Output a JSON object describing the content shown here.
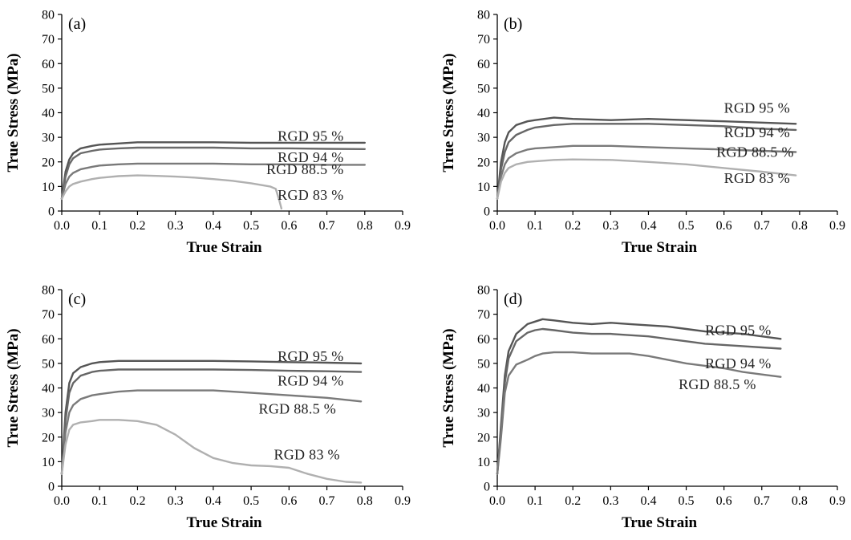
{
  "chart_data": [
    {
      "type": "line",
      "panel_label": "(a)",
      "xlabel": "True Strain",
      "ylabel": "True Stress (MPa)",
      "xlim": [
        0,
        0.9
      ],
      "ylim": [
        0,
        80
      ],
      "xticks": [
        "0.0",
        "0.1",
        "0.2",
        "0.3",
        "0.4",
        "0.5",
        "0.6",
        "0.7",
        "0.8",
        "0.9"
      ],
      "yticks": [
        "0",
        "10",
        "20",
        "30",
        "40",
        "50",
        "60",
        "70",
        "80"
      ],
      "grid": false,
      "series": [
        {
          "name": "RGD 95 %",
          "color": "#555555",
          "label_pos": [
            0.57,
            28.5
          ],
          "x": [
            0,
            0.01,
            0.02,
            0.03,
            0.05,
            0.08,
            0.1,
            0.15,
            0.2,
            0.3,
            0.4,
            0.5,
            0.6,
            0.7,
            0.8
          ],
          "y": [
            5,
            16,
            21,
            23.5,
            25.5,
            26.5,
            27,
            27.5,
            28,
            28,
            28,
            27.8,
            27.8,
            27.8,
            27.8
          ]
        },
        {
          "name": "RGD 94 %",
          "color": "#6a6a6a",
          "label_pos": [
            0.57,
            20
          ],
          "x": [
            0,
            0.01,
            0.02,
            0.03,
            0.05,
            0.08,
            0.1,
            0.15,
            0.2,
            0.3,
            0.4,
            0.5,
            0.6,
            0.7,
            0.8
          ],
          "y": [
            5,
            14,
            19,
            21.5,
            23.5,
            24.5,
            25,
            25.5,
            25.8,
            25.8,
            25.8,
            25.5,
            25.5,
            25.3,
            25.2
          ]
        },
        {
          "name": "RGD 88.5 %",
          "color": "#7a7a7a",
          "label_pos": [
            0.54,
            15
          ],
          "x": [
            0,
            0.01,
            0.02,
            0.03,
            0.05,
            0.08,
            0.1,
            0.15,
            0.2,
            0.3,
            0.4,
            0.5,
            0.6,
            0.7,
            0.8
          ],
          "y": [
            5,
            11,
            14,
            15.5,
            17,
            18,
            18.5,
            19,
            19.3,
            19.3,
            19.3,
            19,
            19,
            18.8,
            18.8
          ]
        },
        {
          "name": "RGD 83 %",
          "color": "#b0b0b0",
          "label_pos": [
            0.57,
            4.5
          ],
          "x": [
            0,
            0.01,
            0.02,
            0.03,
            0.05,
            0.08,
            0.1,
            0.15,
            0.2,
            0.25,
            0.3,
            0.35,
            0.4,
            0.45,
            0.5,
            0.55,
            0.565,
            0.575,
            0.58
          ],
          "y": [
            5,
            8,
            10,
            11,
            12,
            13,
            13.5,
            14.2,
            14.5,
            14.3,
            14,
            13.6,
            13,
            12.3,
            11.3,
            10,
            9,
            4,
            1
          ]
        }
      ]
    },
    {
      "type": "line",
      "panel_label": "(b)",
      "xlabel": "True Strain",
      "ylabel": "True Stress (MPa)",
      "xlim": [
        0,
        0.9
      ],
      "ylim": [
        0,
        80
      ],
      "xticks": [
        "0.0",
        "0.1",
        "0.2",
        "0.3",
        "0.4",
        "0.5",
        "0.6",
        "0.7",
        "0.8",
        "0.9"
      ],
      "yticks": [
        "0",
        "10",
        "20",
        "30",
        "40",
        "50",
        "60",
        "70",
        "80"
      ],
      "grid": false,
      "series": [
        {
          "name": "RGD 95 %",
          "color": "#555555",
          "label_pos": [
            0.6,
            40
          ],
          "x": [
            0,
            0.01,
            0.02,
            0.03,
            0.05,
            0.08,
            0.1,
            0.15,
            0.2,
            0.3,
            0.4,
            0.5,
            0.6,
            0.7,
            0.79
          ],
          "y": [
            5,
            20,
            28,
            32,
            35,
            36.5,
            37,
            38,
            37.5,
            37,
            37.5,
            37,
            36.5,
            36,
            35.5
          ]
        },
        {
          "name": "RGD 94 %",
          "color": "#666666",
          "label_pos": [
            0.6,
            30
          ],
          "x": [
            0,
            0.01,
            0.02,
            0.03,
            0.05,
            0.08,
            0.1,
            0.15,
            0.2,
            0.3,
            0.4,
            0.5,
            0.6,
            0.7,
            0.79
          ],
          "y": [
            5,
            17,
            24,
            28,
            31,
            33,
            34,
            35,
            35.5,
            35.5,
            35.5,
            35,
            34.5,
            33.5,
            33
          ]
        },
        {
          "name": "RGD 88.5 %",
          "color": "#7a7a7a",
          "label_pos": [
            0.58,
            22
          ],
          "x": [
            0,
            0.01,
            0.02,
            0.03,
            0.05,
            0.08,
            0.1,
            0.15,
            0.2,
            0.3,
            0.4,
            0.5,
            0.6,
            0.7,
            0.79
          ],
          "y": [
            5,
            14,
            19,
            21.5,
            23.5,
            25,
            25.5,
            26,
            26.5,
            26.5,
            26,
            25.5,
            25,
            24.5,
            24
          ]
        },
        {
          "name": "RGD 83 %",
          "color": "#b0b0b0",
          "label_pos": [
            0.6,
            11.5
          ],
          "x": [
            0,
            0.01,
            0.02,
            0.03,
            0.05,
            0.08,
            0.1,
            0.15,
            0.2,
            0.3,
            0.4,
            0.5,
            0.6,
            0.7,
            0.79
          ],
          "y": [
            5,
            12,
            15.5,
            17.5,
            19,
            20,
            20.2,
            20.8,
            21,
            20.8,
            20,
            19,
            17.5,
            16,
            14.5
          ]
        }
      ]
    },
    {
      "type": "line",
      "panel_label": "(c)",
      "xlabel": "True Strain",
      "ylabel": "True Stress (MPa)",
      "xlim": [
        0,
        0.9
      ],
      "ylim": [
        0,
        80
      ],
      "xticks": [
        "0.0",
        "0.1",
        "0.2",
        "0.3",
        "0.4",
        "0.5",
        "0.6",
        "0.7",
        "0.8",
        "0.9"
      ],
      "yticks": [
        "0",
        "10",
        "20",
        "30",
        "40",
        "50",
        "60",
        "70",
        "80"
      ],
      "grid": false,
      "series": [
        {
          "name": "RGD 95 %",
          "color": "#555555",
          "label_pos": [
            0.57,
            51
          ],
          "x": [
            0,
            0.01,
            0.02,
            0.03,
            0.05,
            0.08,
            0.1,
            0.15,
            0.2,
            0.3,
            0.4,
            0.5,
            0.6,
            0.7,
            0.79
          ],
          "y": [
            5,
            30,
            42,
            46,
            48.5,
            50,
            50.5,
            51,
            51,
            51,
            51,
            50.8,
            50.5,
            50.3,
            50
          ]
        },
        {
          "name": "RGD 94 %",
          "color": "#666666",
          "label_pos": [
            0.57,
            41
          ],
          "x": [
            0,
            0.01,
            0.02,
            0.03,
            0.05,
            0.08,
            0.1,
            0.15,
            0.2,
            0.3,
            0.4,
            0.5,
            0.6,
            0.7,
            0.79
          ],
          "y": [
            5,
            27,
            38,
            42,
            45,
            46.5,
            47,
            47.5,
            47.5,
            47.5,
            47.5,
            47.3,
            47,
            46.8,
            46.5
          ]
        },
        {
          "name": "RGD 88.5 %",
          "color": "#7a7a7a",
          "label_pos": [
            0.52,
            29.5
          ],
          "x": [
            0,
            0.01,
            0.02,
            0.03,
            0.05,
            0.08,
            0.1,
            0.15,
            0.2,
            0.3,
            0.4,
            0.5,
            0.6,
            0.7,
            0.79
          ],
          "y": [
            5,
            22,
            30,
            33,
            35.5,
            37,
            37.5,
            38.5,
            39,
            39,
            39,
            38,
            37,
            36,
            34.5
          ]
        },
        {
          "name": "RGD 83 %",
          "color": "#b0b0b0",
          "label_pos": [
            0.56,
            11
          ],
          "x": [
            0,
            0.01,
            0.02,
            0.03,
            0.05,
            0.08,
            0.1,
            0.15,
            0.2,
            0.25,
            0.3,
            0.35,
            0.4,
            0.45,
            0.5,
            0.55,
            0.6,
            0.65,
            0.7,
            0.75,
            0.79
          ],
          "y": [
            5,
            17,
            23,
            25,
            26,
            26.5,
            27,
            27,
            26.5,
            25,
            21,
            15.5,
            11.5,
            9.5,
            8.5,
            8.2,
            7.5,
            5,
            3,
            1.8,
            1.5
          ]
        }
      ]
    },
    {
      "type": "line",
      "panel_label": "(d)",
      "xlabel": "True Strain",
      "ylabel": "True Stress (MPa)",
      "xlim": [
        0,
        0.9
      ],
      "ylim": [
        0,
        80
      ],
      "xticks": [
        "0.0",
        "0.1",
        "0.2",
        "0.3",
        "0.4",
        "0.5",
        "0.6",
        "0.7",
        "0.8",
        "0.9"
      ],
      "yticks": [
        "0",
        "10",
        "20",
        "30",
        "40",
        "50",
        "60",
        "70",
        "80"
      ],
      "grid": false,
      "series": [
        {
          "name": "RGD 95 %",
          "color": "#555555",
          "label_pos": [
            0.55,
            61.5
          ],
          "x": [
            0,
            0.01,
            0.02,
            0.03,
            0.05,
            0.08,
            0.1,
            0.12,
            0.15,
            0.2,
            0.25,
            0.3,
            0.35,
            0.4,
            0.45,
            0.5,
            0.55,
            0.6,
            0.65,
            0.7,
            0.75
          ],
          "y": [
            5,
            25,
            45,
            55,
            62,
            66,
            67,
            68,
            67.5,
            66.5,
            66,
            66.5,
            66,
            65.5,
            65,
            64,
            63,
            62.5,
            62,
            61,
            60
          ]
        },
        {
          "name": "RGD 94 %",
          "color": "#666666",
          "label_pos": [
            0.55,
            48
          ],
          "x": [
            0,
            0.01,
            0.02,
            0.03,
            0.05,
            0.08,
            0.1,
            0.12,
            0.15,
            0.2,
            0.25,
            0.3,
            0.35,
            0.4,
            0.45,
            0.5,
            0.55,
            0.6,
            0.65,
            0.7,
            0.75
          ],
          "y": [
            5,
            23,
            42,
            52,
            59,
            62.5,
            63.5,
            64,
            63.5,
            62.5,
            62,
            62,
            61.5,
            61,
            60,
            59,
            58,
            57.5,
            57,
            56.5,
            56
          ]
        },
        {
          "name": "RGD 88.5 %",
          "color": "#7a7a7a",
          "label_pos": [
            0.48,
            39.5
          ],
          "x": [
            0,
            0.01,
            0.02,
            0.03,
            0.05,
            0.08,
            0.1,
            0.12,
            0.15,
            0.2,
            0.25,
            0.3,
            0.35,
            0.4,
            0.45,
            0.5,
            0.55,
            0.6,
            0.65,
            0.7,
            0.75
          ],
          "y": [
            5,
            20,
            38,
            45,
            49.5,
            51.5,
            53,
            54,
            54.5,
            54.5,
            54,
            54,
            54,
            53,
            51.5,
            50,
            49,
            48,
            46.5,
            45.5,
            44.5
          ]
        }
      ]
    }
  ]
}
